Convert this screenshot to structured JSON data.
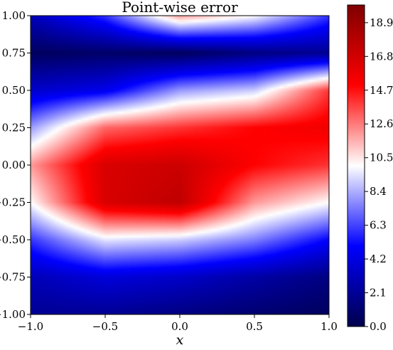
{
  "chart_data": {
    "type": "heatmap",
    "title": "Point-wise error",
    "xlabel": "x",
    "ylabel": "",
    "xlim": [
      -1.0,
      1.0
    ],
    "ylim": [
      -1.0,
      1.0
    ],
    "x_ticks": [
      "−1.0",
      "−0.5",
      "0.0",
      "0.5",
      "1.0"
    ],
    "y_ticks": [
      "1.00",
      "0.75",
      "0.50",
      "0.25",
      "0.00",
      "−0.25",
      "−0.50",
      "−0.75",
      "−1.00"
    ],
    "x_tick_values": [
      -1.0,
      -0.5,
      0.0,
      0.5,
      1.0
    ],
    "y_tick_values": [
      1.0,
      0.75,
      0.5,
      0.25,
      0.0,
      -0.25,
      -0.5,
      -0.75,
      -1.0
    ],
    "colorbar": {
      "colormap": "seismic",
      "range": [
        0.0,
        20.0
      ],
      "tick_labels": [
        "0.0",
        "2.1",
        "4.2",
        "6.3",
        "8.4",
        "10.5",
        "12.6",
        "14.7",
        "16.8",
        "18.9"
      ],
      "tick_values": [
        0.0,
        2.1,
        4.2,
        6.3,
        8.4,
        10.5,
        12.6,
        14.7,
        16.8,
        18.9
      ]
    },
    "field_samples": {
      "x": [
        -1.0,
        -0.5,
        0.0,
        0.5,
        1.0
      ],
      "y": [
        1.0,
        0.75,
        0.5,
        0.25,
        0.0,
        -0.25,
        -0.5,
        -0.75,
        -1.0
      ],
      "values": [
        [
          3.0,
          6.0,
          12.0,
          10.0,
          6.0
        ],
        [
          0.5,
          0.8,
          0.5,
          1.5,
          2.0
        ],
        [
          3.5,
          4.5,
          8.0,
          9.0,
          14.0
        ],
        [
          8.0,
          13.0,
          14.0,
          15.0,
          15.5
        ],
        [
          12.0,
          16.5,
          17.0,
          15.0,
          14.0
        ],
        [
          10.0,
          16.5,
          17.5,
          12.0,
          10.0
        ],
        [
          6.0,
          9.5,
          9.0,
          7.5,
          5.0
        ],
        [
          3.0,
          4.0,
          3.5,
          2.5,
          1.5
        ],
        [
          2.0,
          2.0,
          1.5,
          1.0,
          0.5
        ]
      ]
    },
    "colors": {
      "low": "#00004c",
      "mid": "#ffffff",
      "high": "#800000"
    }
  }
}
